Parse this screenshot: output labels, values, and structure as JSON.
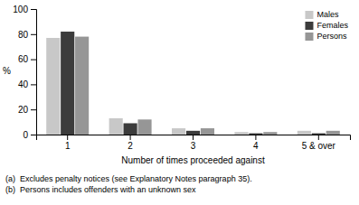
{
  "chart_data": {
    "type": "bar",
    "x_label": "Number of times proceeded against",
    "y_label": "%",
    "categories": [
      "1",
      "2",
      "3",
      "4",
      "5 & over"
    ],
    "series": [
      {
        "name": "Males",
        "color": "#c8c8c8",
        "values": [
          77,
          13,
          5,
          2,
          3
        ]
      },
      {
        "name": "Females",
        "color": "#3c3c3c",
        "values": [
          82,
          9,
          3,
          1,
          1
        ]
      },
      {
        "name": "Persons",
        "color": "#969696",
        "values": [
          78,
          12,
          5,
          2,
          3
        ]
      }
    ],
    "ylim": [
      0,
      100
    ],
    "yticks": [
      0,
      20,
      40,
      60,
      80,
      100
    ],
    "legend": "upper right",
    "annotations": [
      "(a)  Excludes penalty notices (see Explanatory Notes paragraph 35).",
      "(b)  Persons includes offenders with an unknown sex"
    ]
  }
}
